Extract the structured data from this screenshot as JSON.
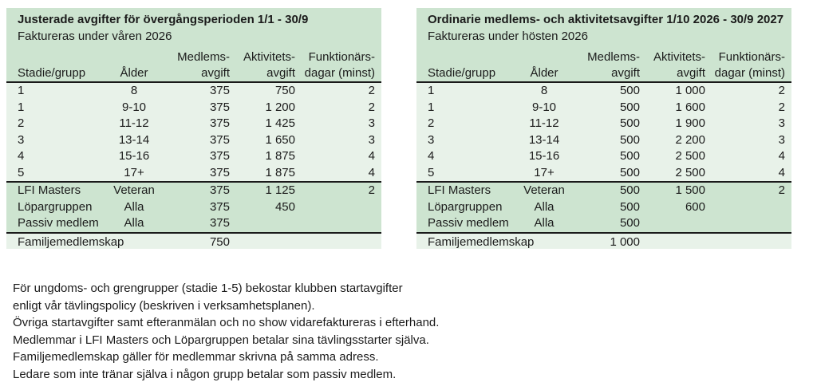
{
  "page": {
    "background": "#ffffff",
    "text_color": "#1b1b1b"
  },
  "colors": {
    "header_section_bg": "#cde4d0",
    "light_row_bg": "#e8f2e9",
    "rule_color": "#1a1a1a"
  },
  "tables": [
    {
      "title": "Justerade avgifter för övergångsperioden 1/1 - 30/9",
      "subtitle": "Faktureras under våren 2026",
      "col_headers": {
        "stadie": "Stadie/grupp",
        "alder": "Ålder",
        "medlems_line1": "Medlems-",
        "medlems_line2": "avgift",
        "aktivitets_line1": "Aktivitets-",
        "aktivitets_line2": "avgift",
        "funktionars_line1": "Funktionärs-",
        "funktionars_line2": "dagar (minst)"
      },
      "main_rows": [
        [
          "1",
          "8",
          "375",
          "750",
          "2"
        ],
        [
          "1",
          "9-10",
          "375",
          "1 200",
          "2"
        ],
        [
          "2",
          "11-12",
          "375",
          "1 425",
          "3"
        ],
        [
          "3",
          "13-14",
          "375",
          "1 650",
          "3"
        ],
        [
          "4",
          "15-16",
          "375",
          "1 875",
          "4"
        ],
        [
          "5",
          "17+",
          "375",
          "1 875",
          "4"
        ]
      ],
      "section_rows": [
        [
          "LFI Masters",
          "Veteran",
          "375",
          "1 125",
          "2"
        ],
        [
          "Löpargruppen",
          "Alla",
          "375",
          "450",
          ""
        ],
        [
          "Passiv medlem",
          "Alla",
          "375",
          "",
          ""
        ]
      ],
      "family_row": {
        "label": "Familjemedlemskap",
        "value": "750"
      }
    },
    {
      "title": "Ordinarie medlems- och aktivitetsavgifter 1/10 2026 - 30/9 2027",
      "subtitle": "Faktureras under hösten 2026",
      "col_headers": {
        "stadie": "Stadie/grupp",
        "alder": "Ålder",
        "medlems_line1": "Medlems-",
        "medlems_line2": "avgift",
        "aktivitets_line1": "Aktivitets-",
        "aktivitets_line2": "avgift",
        "funktionars_line1": "Funktionärs-",
        "funktionars_line2": "dagar (minst)"
      },
      "main_rows": [
        [
          "1",
          "8",
          "500",
          "1 000",
          "2"
        ],
        [
          "1",
          "9-10",
          "500",
          "1 600",
          "2"
        ],
        [
          "2",
          "11-12",
          "500",
          "1 900",
          "3"
        ],
        [
          "3",
          "13-14",
          "500",
          "2 200",
          "3"
        ],
        [
          "4",
          "15-16",
          "500",
          "2 500",
          "4"
        ],
        [
          "5",
          "17+",
          "500",
          "2 500",
          "4"
        ]
      ],
      "section_rows": [
        [
          "LFI Masters",
          "Veteran",
          "500",
          "1 500",
          "2"
        ],
        [
          "Löpargruppen",
          "Alla",
          "500",
          "600",
          ""
        ],
        [
          "Passiv medlem",
          "Alla",
          "500",
          "",
          ""
        ]
      ],
      "family_row": {
        "label": "Familjemedlemskap",
        "value": "1 000"
      }
    }
  ],
  "notes": [
    "För ungdoms- och grengrupper (stadie 1-5) bekostar klubben startavgifter",
    "enligt vår tävlingspolicy (beskriven i verksamhetsplanen).",
    "Övriga startavgifter samt efteranmälan och no show vidarefaktureras i efterhand.",
    "Medlemmar i LFI Masters och Löpargruppen betalar sina tävlingsstarter själva.",
    "Familjemedlemskap gäller för medlemmar skrivna på samma adress.",
    "Ledare som inte tränar själva i någon grupp betalar som passiv medlem."
  ]
}
